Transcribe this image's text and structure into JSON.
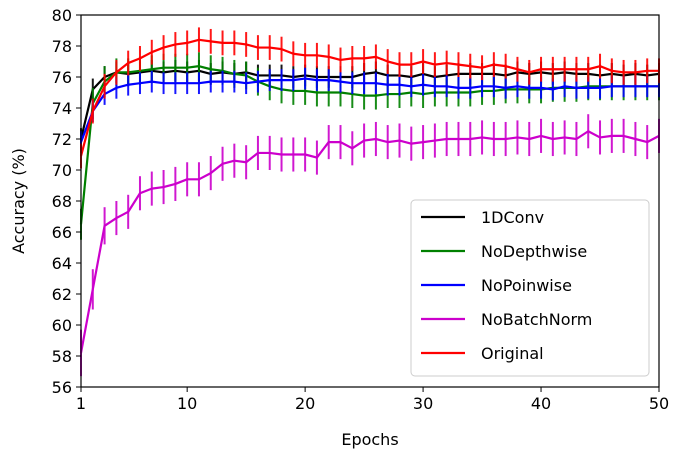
{
  "chart_data": {
    "type": "line",
    "xlabel": "Epochs",
    "ylabel": "Accuracy (%)",
    "xlim": [
      1,
      50
    ],
    "ylim": [
      56,
      80
    ],
    "xticks": [
      1,
      10,
      20,
      30,
      40,
      50
    ],
    "yticks": [
      56,
      58,
      60,
      62,
      64,
      66,
      68,
      70,
      72,
      74,
      76,
      78,
      80
    ],
    "grid": false,
    "legend_position": "lower-right",
    "x": [
      1,
      2,
      3,
      4,
      5,
      6,
      7,
      8,
      9,
      10,
      11,
      12,
      13,
      14,
      15,
      16,
      17,
      18,
      19,
      20,
      21,
      22,
      23,
      24,
      25,
      26,
      27,
      28,
      29,
      30,
      31,
      32,
      33,
      34,
      35,
      36,
      37,
      38,
      39,
      40,
      41,
      42,
      43,
      44,
      45,
      46,
      47,
      48,
      49,
      50
    ],
    "series": [
      {
        "name": "1DConv",
        "color": "#000000",
        "values": [
          72.0,
          75.2,
          76.0,
          76.3,
          76.2,
          76.3,
          76.4,
          76.3,
          76.4,
          76.3,
          76.4,
          76.2,
          76.3,
          76.2,
          76.3,
          76.1,
          76.1,
          76.1,
          76.0,
          76.1,
          76.0,
          76.0,
          76.0,
          76.0,
          76.2,
          76.3,
          76.1,
          76.1,
          76.0,
          76.2,
          76.0,
          76.1,
          76.2,
          76.2,
          76.2,
          76.2,
          76.1,
          76.3,
          76.2,
          76.3,
          76.2,
          76.3,
          76.2,
          76.2,
          76.1,
          76.2,
          76.1,
          76.2,
          76.1,
          76.2
        ],
        "error": [
          0.7,
          0.7,
          0.7,
          0.7,
          0.7,
          0.7,
          0.7,
          0.7,
          0.7,
          0.7,
          0.7,
          0.7,
          0.7,
          0.7,
          0.7,
          0.7,
          0.7,
          0.7,
          0.7,
          0.7,
          0.7,
          0.7,
          0.7,
          0.7,
          0.7,
          0.7,
          0.7,
          0.7,
          0.7,
          0.7,
          0.7,
          0.7,
          0.7,
          0.7,
          0.7,
          0.7,
          0.7,
          0.7,
          0.7,
          0.7,
          0.7,
          0.7,
          0.7,
          0.7,
          0.7,
          0.7,
          0.7,
          0.7,
          0.7,
          0.7
        ]
      },
      {
        "name": "NoDepthwise",
        "color": "#008000",
        "values": [
          66.5,
          74.3,
          75.7,
          76.3,
          76.3,
          76.4,
          76.5,
          76.6,
          76.6,
          76.6,
          76.7,
          76.5,
          76.4,
          76.2,
          76.1,
          75.7,
          75.4,
          75.2,
          75.1,
          75.1,
          75.0,
          75.0,
          75.0,
          74.9,
          74.8,
          74.8,
          74.9,
          74.9,
          75.0,
          74.9,
          75.0,
          75.0,
          75.0,
          75.0,
          75.1,
          75.1,
          75.2,
          75.2,
          75.2,
          75.2,
          75.3,
          75.3,
          75.3,
          75.4,
          75.4,
          75.4,
          75.4,
          75.4,
          75.4,
          75.4
        ],
        "error": [
          1.0,
          1.0,
          1.0,
          0.9,
          0.9,
          0.9,
          0.9,
          0.9,
          0.9,
          0.9,
          0.9,
          0.9,
          0.9,
          0.9,
          0.9,
          0.9,
          0.9,
          0.9,
          0.9,
          0.9,
          0.9,
          0.9,
          0.9,
          0.9,
          0.9,
          0.9,
          0.9,
          0.9,
          0.9,
          0.9,
          0.9,
          0.9,
          0.9,
          0.9,
          0.9,
          0.9,
          0.9,
          0.9,
          0.9,
          0.9,
          0.9,
          0.9,
          0.9,
          0.9,
          0.9,
          0.9,
          0.9,
          0.9,
          0.9,
          0.9
        ]
      },
      {
        "name": "NoPoinwise",
        "color": "#0000ff",
        "values": [
          71.8,
          73.8,
          74.9,
          75.3,
          75.5,
          75.6,
          75.7,
          75.6,
          75.6,
          75.6,
          75.6,
          75.7,
          75.7,
          75.7,
          75.6,
          75.7,
          75.8,
          75.8,
          75.8,
          75.9,
          75.8,
          75.8,
          75.7,
          75.6,
          75.6,
          75.6,
          75.5,
          75.5,
          75.4,
          75.5,
          75.4,
          75.4,
          75.3,
          75.3,
          75.4,
          75.4,
          75.3,
          75.4,
          75.3,
          75.3,
          75.2,
          75.4,
          75.3,
          75.3,
          75.3,
          75.4,
          75.4,
          75.4,
          75.4,
          75.4
        ],
        "error": [
          0.7,
          0.7,
          0.7,
          0.7,
          0.7,
          0.7,
          0.7,
          0.7,
          0.7,
          0.7,
          0.7,
          0.7,
          0.7,
          0.7,
          0.7,
          0.7,
          0.7,
          0.7,
          0.7,
          0.7,
          0.7,
          0.7,
          0.7,
          0.7,
          0.7,
          0.7,
          0.7,
          0.7,
          0.7,
          0.7,
          0.7,
          0.7,
          0.7,
          0.7,
          0.7,
          0.7,
          0.7,
          0.7,
          0.7,
          0.7,
          0.7,
          0.7,
          0.7,
          0.7,
          0.7,
          0.7,
          0.7,
          0.7,
          0.7,
          0.7
        ]
      },
      {
        "name": "NoBatchNorm",
        "color": "#cc00cc",
        "values": [
          58.2,
          62.3,
          66.4,
          66.9,
          67.3,
          68.5,
          68.8,
          68.9,
          69.1,
          69.4,
          69.4,
          69.8,
          70.4,
          70.6,
          70.5,
          71.1,
          71.1,
          71.0,
          71.0,
          71.0,
          70.8,
          71.8,
          71.8,
          71.4,
          71.9,
          72.0,
          71.8,
          71.9,
          71.7,
          71.8,
          71.9,
          72.0,
          72.0,
          72.0,
          72.1,
          72.0,
          72.0,
          72.1,
          72.0,
          72.2,
          72.0,
          72.1,
          72.0,
          72.5,
          72.1,
          72.2,
          72.2,
          72.0,
          71.8,
          72.2
        ],
        "error": [
          1.5,
          1.3,
          1.2,
          1.1,
          1.1,
          1.1,
          1.1,
          1.1,
          1.1,
          1.1,
          1.1,
          1.1,
          1.1,
          1.1,
          1.1,
          1.1,
          1.1,
          1.1,
          1.1,
          1.1,
          1.1,
          1.1,
          1.1,
          1.1,
          1.1,
          1.1,
          1.1,
          1.1,
          1.1,
          1.1,
          1.1,
          1.1,
          1.1,
          1.1,
          1.1,
          1.1,
          1.1,
          1.1,
          1.1,
          1.1,
          1.1,
          1.1,
          1.1,
          1.1,
          1.1,
          1.1,
          1.1,
          1.1,
          1.1,
          1.1
        ]
      },
      {
        "name": "Original",
        "color": "#ff0000",
        "values": [
          70.9,
          73.8,
          75.4,
          76.3,
          76.9,
          77.2,
          77.6,
          77.9,
          78.1,
          78.2,
          78.4,
          78.3,
          78.2,
          78.2,
          78.1,
          77.9,
          77.9,
          77.8,
          77.5,
          77.4,
          77.4,
          77.3,
          77.1,
          77.2,
          77.2,
          77.3,
          77.0,
          76.8,
          76.8,
          77.0,
          76.8,
          76.9,
          76.8,
          76.7,
          76.6,
          76.8,
          76.7,
          76.5,
          76.3,
          76.5,
          76.5,
          76.5,
          76.5,
          76.5,
          76.7,
          76.4,
          76.3,
          76.3,
          76.4,
          76.4
        ],
        "error": [
          0.8,
          0.8,
          0.8,
          0.8,
          0.8,
          0.8,
          0.8,
          0.8,
          0.8,
          0.8,
          0.8,
          0.8,
          0.8,
          0.8,
          0.8,
          0.8,
          0.8,
          0.8,
          0.8,
          0.8,
          0.8,
          0.8,
          0.8,
          0.8,
          0.8,
          0.8,
          0.8,
          0.8,
          0.8,
          0.8,
          0.8,
          0.8,
          0.8,
          0.8,
          0.8,
          0.8,
          0.8,
          0.8,
          0.8,
          0.8,
          0.8,
          0.8,
          0.8,
          0.8,
          0.8,
          0.8,
          0.8,
          0.8,
          0.8,
          0.8
        ]
      }
    ]
  }
}
